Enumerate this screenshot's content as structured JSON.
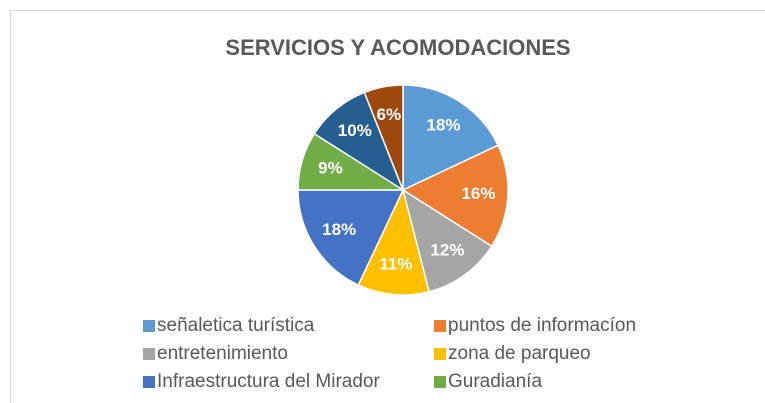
{
  "chart_data": {
    "type": "pie",
    "title": "SERVICIOS Y ACOMODACIONES",
    "categories": [
      "señaletica turística",
      "puntos de informacíon",
      "entretenimiento",
      "zona de parqueo",
      "Infraestructura del Mirador",
      "Guradianía",
      null,
      null
    ],
    "values": [
      18,
      16,
      12,
      11,
      18,
      9,
      10,
      6
    ],
    "value_labels": [
      "18%",
      "16%",
      "12%",
      "11%",
      "18%",
      "9%",
      "10%",
      "6%"
    ],
    "colors": [
      "#5b9bd5",
      "#ed7d31",
      "#a5a5a5",
      "#ffc000",
      "#4472c4",
      "#70ad47",
      "#255e91",
      "#9e480e"
    ],
    "legend": "bottom"
  }
}
